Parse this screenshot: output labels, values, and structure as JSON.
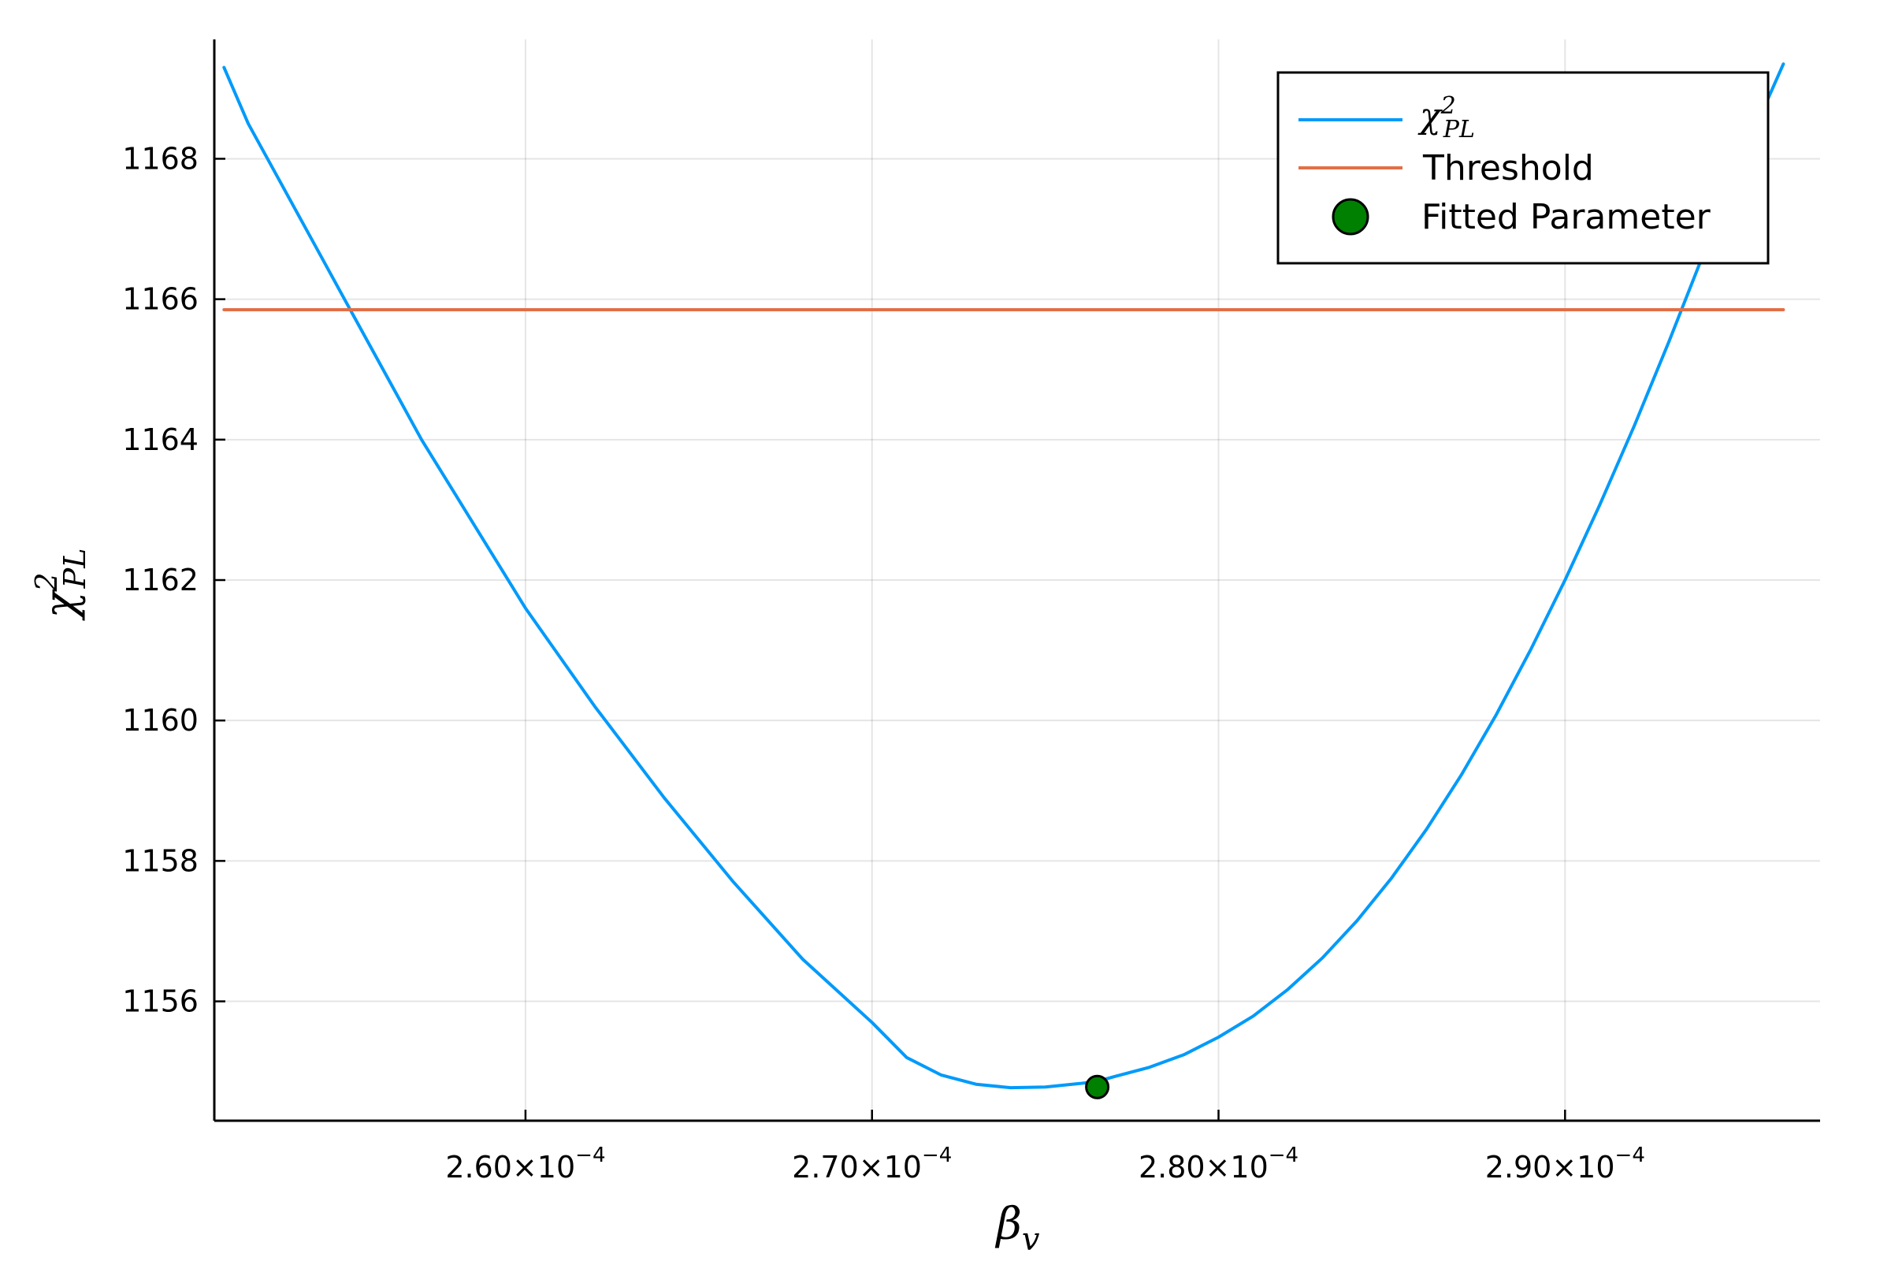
{
  "chart_data": {
    "type": "line",
    "title": "",
    "xlabel": {
      "base": "β",
      "subscript": "v"
    },
    "ylabel": {
      "base": "χ",
      "superscript": "2",
      "subscript": "PL"
    },
    "xlim": [
      0.00025102,
      0.00029736
    ],
    "ylim": [
      1154.3,
      1169.7
    ],
    "grid": true,
    "legend_position": "top-right",
    "x_ticks": [
      {
        "value": 0.00026,
        "mantissa": "2.60×10",
        "exponent": "−4"
      },
      {
        "value": 0.00027,
        "mantissa": "2.70×10",
        "exponent": "−4"
      },
      {
        "value": 0.00028,
        "mantissa": "2.80×10",
        "exponent": "−4"
      },
      {
        "value": 0.00029,
        "mantissa": "2.90×10",
        "exponent": "−4"
      }
    ],
    "y_ticks": [
      "1156",
      "1158",
      "1160",
      "1162",
      "1164",
      "1166",
      "1168"
    ],
    "series": [
      {
        "name": "χ²_PL",
        "legend": {
          "base": "χ",
          "superscript": "2",
          "subscript": "PL"
        },
        "kind": "line",
        "color": "#009AFA",
        "x": [
          0.0002513,
          0.000252,
          0.000253,
          0.000254,
          0.000255,
          0.000256,
          0.000257,
          0.000258,
          0.000259,
          0.00026,
          0.000262,
          0.000264,
          0.000266,
          0.000268,
          0.00027,
          0.000271,
          0.000272,
          0.000273,
          0.000274,
          0.000275,
          0.000276,
          0.0002765,
          0.000277,
          0.000278,
          0.000279,
          0.00028,
          0.000281,
          0.000282,
          0.000283,
          0.000284,
          0.000285,
          0.000286,
          0.000287,
          0.000288,
          0.000289,
          0.00029,
          0.000291,
          0.000292,
          0.000293,
          0.000294,
          0.000295,
          0.0002963
        ],
        "y": [
          1169.3,
          1168.5,
          1167.6,
          1166.7,
          1165.8,
          1164.9,
          1164.0,
          1163.2,
          1162.4,
          1161.6,
          1160.2,
          1158.9,
          1157.7,
          1156.6,
          1155.7,
          1155.2,
          1154.95,
          1154.82,
          1154.77,
          1154.78,
          1154.83,
          1154.86,
          1154.93,
          1155.06,
          1155.24,
          1155.49,
          1155.79,
          1156.17,
          1156.62,
          1157.15,
          1157.76,
          1158.45,
          1159.22,
          1160.07,
          1161.0,
          1162.0,
          1163.07,
          1164.2,
          1165.4,
          1166.65,
          1167.9,
          1169.35
        ]
      },
      {
        "name": "Threshold",
        "legend": {
          "text": "Threshold"
        },
        "kind": "line",
        "color": "#E26F46",
        "x": [
          0.0002513,
          0.0002963
        ],
        "y": [
          1165.85,
          1165.85
        ]
      },
      {
        "name": "Fitted Parameter",
        "legend": {
          "text": "Fitted Parameter"
        },
        "kind": "scatter",
        "color": "#008000",
        "x": [
          0.0002765
        ],
        "y": [
          1154.78
        ]
      }
    ]
  }
}
